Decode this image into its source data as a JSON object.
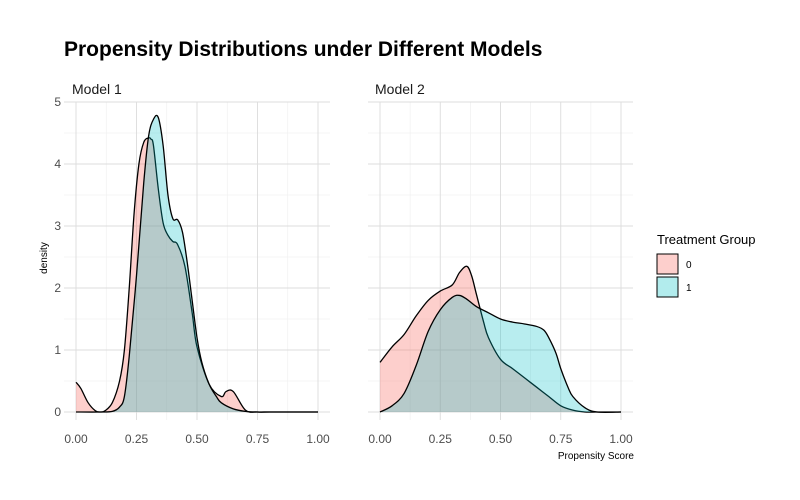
{
  "chart_data": {
    "type": "area",
    "title": "Propensity Distributions under Different Models",
    "xlabel": "Propensity Score",
    "ylabel": "density",
    "xlim": [
      0,
      1
    ],
    "ylim": [
      0,
      5
    ],
    "x_ticks": [
      "0.00",
      "0.25",
      "0.50",
      "0.75",
      "1.00"
    ],
    "y_ticks": [
      "0",
      "1",
      "2",
      "3",
      "4",
      "5"
    ],
    "grid": true,
    "legend": {
      "title": "Treatment Group",
      "placement": "right",
      "entries": [
        {
          "label": "0",
          "color": "#F8766D"
        },
        {
          "label": "1",
          "color": "#00BFC4"
        }
      ]
    },
    "panels": [
      {
        "name": "Model 1",
        "series": [
          {
            "name": "0",
            "color": "#F8766D",
            "x": [
              0.0,
              0.02,
              0.05,
              0.08,
              0.1,
              0.12,
              0.15,
              0.18,
              0.2,
              0.22,
              0.24,
              0.26,
              0.28,
              0.3,
              0.31,
              0.32,
              0.34,
              0.36,
              0.38,
              0.4,
              0.42,
              0.45,
              0.48,
              0.5,
              0.55,
              0.6,
              0.62,
              0.65,
              0.7,
              0.75,
              0.8,
              0.9,
              1.0
            ],
            "y": [
              0.48,
              0.38,
              0.15,
              0.02,
              0.0,
              0.02,
              0.15,
              0.5,
              1.0,
              2.0,
              3.2,
              4.0,
              4.35,
              4.42,
              4.4,
              4.3,
              3.6,
              3.05,
              2.85,
              2.75,
              2.7,
              2.35,
              1.6,
              1.05,
              0.45,
              0.25,
              0.33,
              0.33,
              0.03,
              0.0,
              0.0,
              0.0,
              0.0
            ]
          },
          {
            "name": "1",
            "color": "#00BFC4",
            "x": [
              0.0,
              0.1,
              0.15,
              0.18,
              0.2,
              0.22,
              0.25,
              0.28,
              0.3,
              0.32,
              0.34,
              0.36,
              0.38,
              0.4,
              0.42,
              0.44,
              0.46,
              0.48,
              0.5,
              0.52,
              0.55,
              0.58,
              0.6,
              0.65,
              0.7,
              0.75,
              0.8,
              0.9,
              1.0
            ],
            "y": [
              0.0,
              0.0,
              0.01,
              0.08,
              0.25,
              0.9,
              2.2,
              3.7,
              4.45,
              4.72,
              4.75,
              4.3,
              3.5,
              3.12,
              3.1,
              2.9,
              2.4,
              1.8,
              1.2,
              0.8,
              0.45,
              0.25,
              0.15,
              0.05,
              0.01,
              0.0,
              0.0,
              0.0,
              0.0
            ]
          }
        ]
      },
      {
        "name": "Model 2",
        "series": [
          {
            "name": "0",
            "color": "#F8766D",
            "x": [
              0.0,
              0.05,
              0.1,
              0.15,
              0.2,
              0.25,
              0.3,
              0.33,
              0.36,
              0.38,
              0.4,
              0.43,
              0.45,
              0.5,
              0.55,
              0.6,
              0.65,
              0.7,
              0.75,
              0.8,
              0.85,
              0.9,
              0.95,
              1.0
            ],
            "y": [
              0.8,
              1.05,
              1.25,
              1.55,
              1.8,
              1.95,
              2.05,
              2.25,
              2.35,
              2.2,
              1.9,
              1.45,
              1.2,
              0.85,
              0.7,
              0.55,
              0.4,
              0.25,
              0.1,
              0.03,
              0.0,
              0.0,
              0.0,
              0.0
            ]
          },
          {
            "name": "1",
            "color": "#00BFC4",
            "x": [
              0.0,
              0.05,
              0.1,
              0.15,
              0.2,
              0.25,
              0.3,
              0.33,
              0.36,
              0.4,
              0.45,
              0.5,
              0.55,
              0.6,
              0.65,
              0.68,
              0.7,
              0.73,
              0.75,
              0.78,
              0.8,
              0.85,
              0.9,
              1.0
            ],
            "y": [
              0.0,
              0.1,
              0.3,
              0.75,
              1.3,
              1.65,
              1.85,
              1.88,
              1.82,
              1.7,
              1.6,
              1.5,
              1.45,
              1.42,
              1.38,
              1.32,
              1.2,
              0.95,
              0.7,
              0.4,
              0.25,
              0.07,
              0.0,
              0.0
            ]
          }
        ]
      }
    ]
  }
}
